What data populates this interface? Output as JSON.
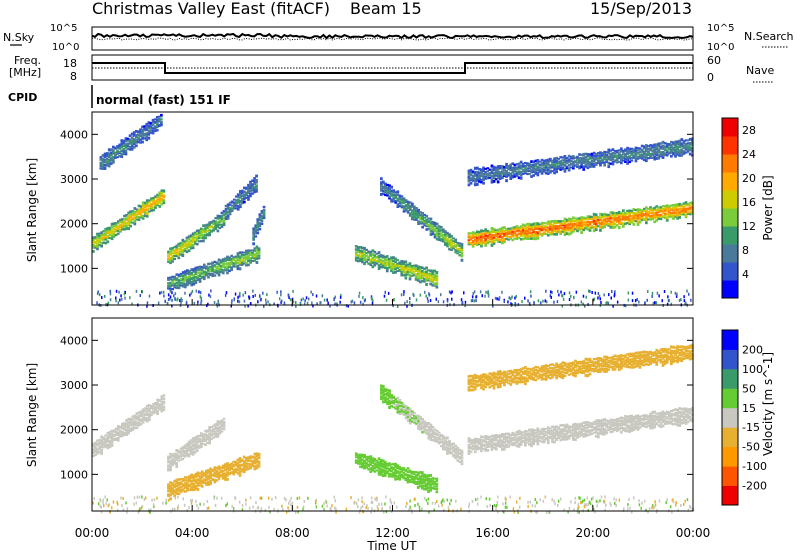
{
  "header": {
    "station": "Christmas Valley East (fitACF)",
    "beam": "Beam 15",
    "date": "15/Sep/2013"
  },
  "status_panels": {
    "nsky_label": "N.Sky",
    "nsky_ticks": [
      "10^5",
      "10^0"
    ],
    "nsearch_label": "N.Search",
    "nsearch_ticks": [
      "10^5",
      "10^0"
    ],
    "freq_label": "Freq.",
    "freq_unit": "[MHz]",
    "freq_ticks": [
      "18",
      "8"
    ],
    "nave_label": "Nave",
    "nave_ticks": [
      "60",
      "0"
    ],
    "cpid_label": "CPID",
    "cpid_text": "normal (fast) 151 IF"
  },
  "chart_data": [
    {
      "type": "heatmap",
      "name": "power",
      "ylabel": "Slant Range [km]",
      "yticks": [
        "4000",
        "3000",
        "2000",
        "1000"
      ],
      "ylim": [
        180,
        4500
      ],
      "xlim_hours": [
        0,
        24
      ],
      "colorbar_label": "Power [dB]",
      "colorbar_ticks": [
        "28",
        "24",
        "20",
        "16",
        "12",
        "8",
        "4"
      ],
      "colorbar_range": [
        0,
        30
      ],
      "colors": [
        "#0000ff",
        "#3355cc",
        "#4a7a9a",
        "#3a9a6a",
        "#7acc3a",
        "#cccc00",
        "#ffaa00",
        "#ff7a00",
        "#ff3300",
        "#ee0000"
      ],
      "bands": [
        {
          "t0": 0.0,
          "t1": 2.9,
          "r0": 1600,
          "r1": 2700,
          "v0": 18,
          "v1": 22
        },
        {
          "t0": 0.3,
          "t1": 2.8,
          "r0": 3400,
          "r1": 4400,
          "v0": 10,
          "v1": 8
        },
        {
          "t0": 3.0,
          "t1": 5.3,
          "r0": 1300,
          "r1": 2200,
          "v0": 20,
          "v1": 14
        },
        {
          "t0": 5.3,
          "t1": 6.6,
          "r0": 2300,
          "r1": 3000,
          "v0": 10,
          "v1": 8
        },
        {
          "t0": 6.4,
          "t1": 6.9,
          "r0": 1800,
          "r1": 2400,
          "v0": 10,
          "v1": 10
        },
        {
          "t0": 3.0,
          "t1": 6.7,
          "r0": 700,
          "r1": 1400,
          "v0": 12,
          "v1": 16
        },
        {
          "t0": 10.5,
          "t1": 13.8,
          "r0": 1400,
          "r1": 800,
          "v0": 16,
          "v1": 18
        },
        {
          "t0": 11.5,
          "t1": 14.8,
          "r0": 2900,
          "r1": 1400,
          "v0": 8,
          "v1": 18
        },
        {
          "t0": 15.0,
          "t1": 24.0,
          "r0": 1700,
          "r1": 2400,
          "v0": 26,
          "v1": 24
        },
        {
          "t0": 15.0,
          "t1": 24.0,
          "r0": 3100,
          "r1": 3800,
          "v0": 8,
          "v1": 10
        }
      ]
    },
    {
      "type": "heatmap",
      "name": "velocity",
      "ylabel": "Slant Range [km]",
      "yticks": [
        "4000",
        "3000",
        "2000",
        "1000"
      ],
      "ylim": [
        180,
        4500
      ],
      "xlabel": "Time UT",
      "xticks": [
        "00:00",
        "04:00",
        "08:00",
        "12:00",
        "16:00",
        "20:00",
        "00:00"
      ],
      "xtick_hours": [
        0,
        4,
        8,
        12,
        16,
        20,
        24
      ],
      "xlim_hours": [
        0,
        24
      ],
      "colorbar_label": "Velocity [m s^-1]",
      "colorbar_ticks": [
        "200",
        "100",
        "50",
        "15",
        "-15",
        "-50",
        "-100",
        "-200"
      ],
      "colorbar_range": [
        -250,
        250
      ],
      "colors": [
        "#ee0000",
        "#ff5500",
        "#ff9900",
        "#e8b030",
        "#c8c8c0",
        "#66cc33",
        "#3a9a6a",
        "#3355cc",
        "#0000ff"
      ],
      "bands": [
        {
          "t0": 0.0,
          "t1": 2.9,
          "r0": 1600,
          "r1": 2700,
          "v0": 0,
          "v1": 0
        },
        {
          "t0": 3.0,
          "t1": 5.3,
          "r0": 1300,
          "r1": 2200,
          "v0": 0,
          "v1": 0
        },
        {
          "t0": 3.0,
          "t1": 6.7,
          "r0": 700,
          "r1": 1400,
          "v0": -60,
          "v1": -60
        },
        {
          "t0": 10.5,
          "t1": 13.8,
          "r0": 1400,
          "r1": 800,
          "v0": 40,
          "v1": 40
        },
        {
          "t0": 11.5,
          "t1": 14.8,
          "r0": 2900,
          "r1": 1400,
          "v0": 40,
          "v1": 0
        },
        {
          "t0": 15.0,
          "t1": 24.0,
          "r0": 1700,
          "r1": 2400,
          "v0": 0,
          "v1": 0
        },
        {
          "t0": 15.0,
          "t1": 24.0,
          "r0": 3100,
          "r1": 3800,
          "v0": -40,
          "v1": -40
        }
      ]
    }
  ]
}
